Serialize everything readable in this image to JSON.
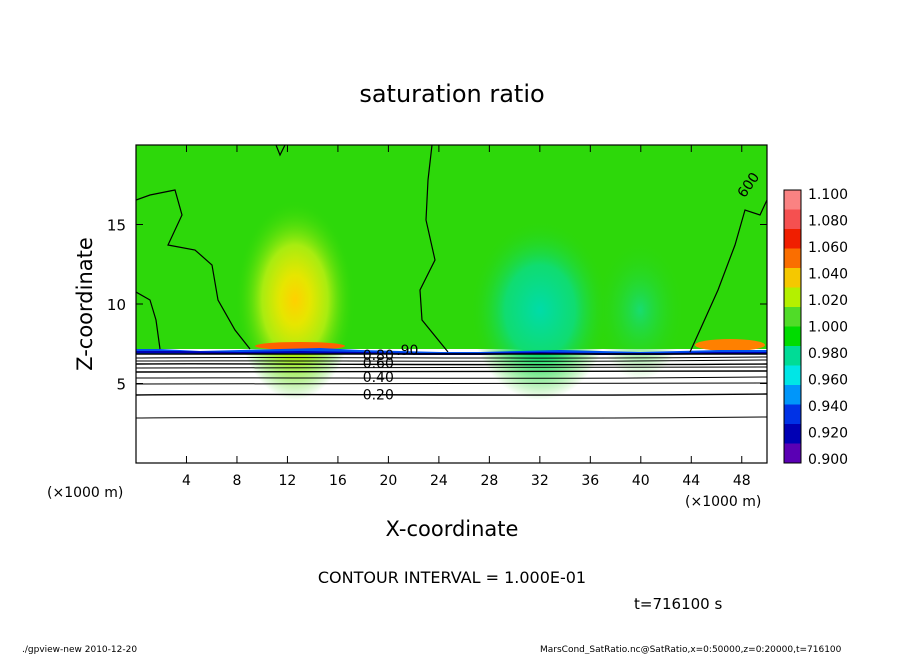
{
  "chart_data": {
    "type": "heatmap",
    "title": "saturation ratio",
    "xlabel": "X-coordinate",
    "ylabel": "Z-coordinate",
    "x_unit_left": "(×1000 m)",
    "x_unit_right": "(×1000 m)",
    "xlim": [
      0,
      50
    ],
    "ylim": [
      0,
      20
    ],
    "x_ticks": [
      4,
      8,
      12,
      16,
      20,
      24,
      28,
      32,
      36,
      40,
      44,
      48
    ],
    "y_ticks": [
      5,
      10,
      15
    ],
    "colorbar": {
      "levels": [
        "1.100",
        "1.080",
        "1.060",
        "1.040",
        "1.020",
        "1.000",
        "0.980",
        "0.960",
        "0.940",
        "0.920",
        "0.900"
      ],
      "colors": [
        "#fa8282",
        "#f55050",
        "#f01e00",
        "#fa6e00",
        "#f5c800",
        "#b4f000",
        "#50dc28",
        "#00dc00",
        "#00dc96",
        "#00e6e6",
        "#0096fa",
        "#0032e6",
        "#0000b4",
        "#5a00b4"
      ]
    },
    "contour_labels": [
      {
        "text": "0.20",
        "x": 19.2,
        "z": 4.3
      },
      {
        "text": "0.40",
        "x": 19.2,
        "z": 5.4
      },
      {
        "text": "0.60",
        "x": 19.2,
        "z": 6.3
      },
      {
        "text": "0.80",
        "x": 19.2,
        "z": 6.8
      },
      {
        "text": ".90",
        "x": 21.5,
        "z": 7.1
      },
      {
        "text": "600",
        "x": 48.5,
        "z": 17.5
      }
    ],
    "contour_interval": "CONTOUR INTERVAL = 1.000E-01",
    "time": "t=716100 s"
  },
  "footer": {
    "left": "./gpview-new  2010-12-20",
    "right": "MarsCond_SatRatio.nc@SatRatio,x=0:50000,z=0:20000,t=716100"
  }
}
